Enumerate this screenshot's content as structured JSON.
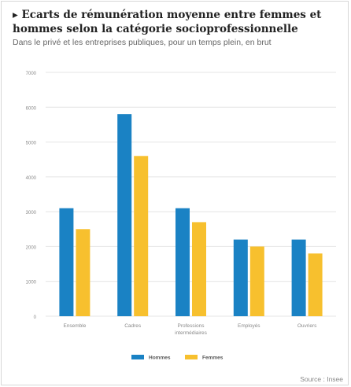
{
  "title": "▸ Ecarts de rémunération moyenne entre femmes et hommes selon la catégorie socioprofessionnelle",
  "subtitle": "Dans le privé et les entreprises publiques, pour un temps plein, en brut",
  "source": "Source : Insee",
  "colors": {
    "hommes": "#1a82c4",
    "femmes": "#f7c02e",
    "grid": "#e4e4e4",
    "tick": "#8a8a8a"
  },
  "chart_data": {
    "type": "bar",
    "categories": [
      "Ensemble",
      "Cadres",
      "Professions intermédiaires",
      "Employés",
      "Ouvriers"
    ],
    "category_lines": [
      [
        "Ensemble"
      ],
      [
        "Cadres"
      ],
      [
        "Professions",
        "intermédiaires"
      ],
      [
        "Employés"
      ],
      [
        "Ouvriers"
      ]
    ],
    "series": [
      {
        "name": "Hommes",
        "values": [
          3100,
          5800,
          3100,
          2200,
          2200
        ]
      },
      {
        "name": "Femmes",
        "values": [
          2500,
          4600,
          2700,
          2000,
          1800
        ]
      }
    ],
    "ylim": [
      0,
      7000
    ],
    "yticks": [
      0,
      1000,
      2000,
      3000,
      4000,
      5000,
      6000,
      7000
    ],
    "ytick_labels": [
      "0",
      "1000",
      "2000",
      "3000",
      "4000",
      "5000",
      "6000",
      "7000"
    ],
    "xlabel": "",
    "ylabel": "",
    "grid": true,
    "legend": "bottom-center"
  }
}
